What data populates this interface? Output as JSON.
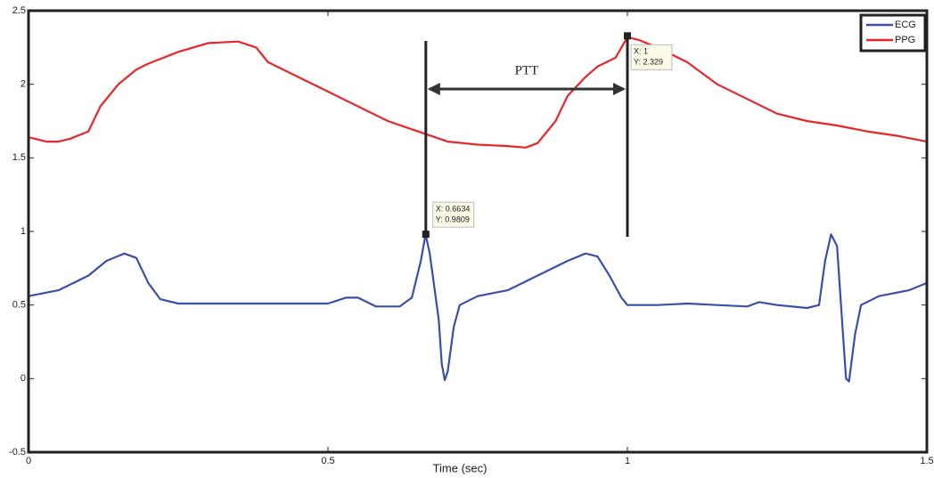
{
  "chart_data": {
    "type": "line",
    "xlabel": "Time (sec)",
    "xlim": [
      0,
      1.5
    ],
    "xticks": [
      0,
      0.5,
      1,
      1.5
    ],
    "ylim": [
      -0.5,
      2.5
    ],
    "yticks": [
      -0.5,
      0,
      0.5,
      1,
      1.5,
      2,
      2.5
    ],
    "legend": "upper right",
    "series": [
      {
        "name": "ECG",
        "color": "#3a50a8",
        "x": [
          0,
          0.05,
          0.1,
          0.13,
          0.16,
          0.18,
          0.2,
          0.22,
          0.25,
          0.35,
          0.45,
          0.5,
          0.53,
          0.55,
          0.58,
          0.62,
          0.64,
          0.655,
          0.663,
          0.67,
          0.685,
          0.69,
          0.695,
          0.7,
          0.71,
          0.72,
          0.75,
          0.8,
          0.85,
          0.9,
          0.93,
          0.95,
          0.97,
          0.99,
          1.0,
          1.05,
          1.1,
          1.15,
          1.2,
          1.22,
          1.25,
          1.3,
          1.32,
          1.33,
          1.34,
          1.35,
          1.36,
          1.365,
          1.37,
          1.38,
          1.39,
          1.42,
          1.47,
          1.5
        ],
        "values": [
          0.56,
          0.6,
          0.7,
          0.8,
          0.85,
          0.82,
          0.65,
          0.54,
          0.51,
          0.51,
          0.51,
          0.51,
          0.55,
          0.55,
          0.49,
          0.49,
          0.55,
          0.8,
          0.98,
          0.85,
          0.4,
          0.1,
          -0.01,
          0.05,
          0.35,
          0.5,
          0.56,
          0.6,
          0.7,
          0.8,
          0.85,
          0.83,
          0.7,
          0.55,
          0.5,
          0.5,
          0.51,
          0.5,
          0.49,
          0.52,
          0.5,
          0.48,
          0.5,
          0.8,
          0.98,
          0.9,
          0.3,
          0.0,
          -0.02,
          0.3,
          0.5,
          0.56,
          0.6,
          0.65
        ]
      },
      {
        "name": "PPG",
        "color": "#e8262a",
        "x": [
          0,
          0.03,
          0.05,
          0.07,
          0.1,
          0.12,
          0.15,
          0.18,
          0.2,
          0.25,
          0.3,
          0.35,
          0.38,
          0.4,
          0.5,
          0.6,
          0.65,
          0.7,
          0.75,
          0.8,
          0.83,
          0.85,
          0.88,
          0.9,
          0.93,
          0.95,
          0.98,
          1.0,
          1.02,
          1.05,
          1.1,
          1.15,
          1.2,
          1.25,
          1.3,
          1.35,
          1.4,
          1.45,
          1.5
        ],
        "values": [
          1.64,
          1.61,
          1.61,
          1.63,
          1.68,
          1.85,
          2.0,
          2.1,
          2.14,
          2.22,
          2.28,
          2.29,
          2.25,
          2.15,
          1.95,
          1.75,
          1.68,
          1.61,
          1.59,
          1.58,
          1.57,
          1.6,
          1.75,
          1.92,
          2.05,
          2.12,
          2.18,
          2.32,
          2.3,
          2.25,
          2.15,
          2.0,
          1.9,
          1.8,
          1.75,
          1.72,
          1.68,
          1.65,
          1.61
        ]
      }
    ],
    "datatips": [
      {
        "x": 0.6634,
        "y": 0.9809,
        "x_label": "X: 0.6634",
        "y_label": "Y: 0.9809"
      },
      {
        "x": 1,
        "y": 2.329,
        "x_label": "X: 1",
        "y_label": "Y: 2.329"
      }
    ],
    "annotation": "PTT"
  }
}
